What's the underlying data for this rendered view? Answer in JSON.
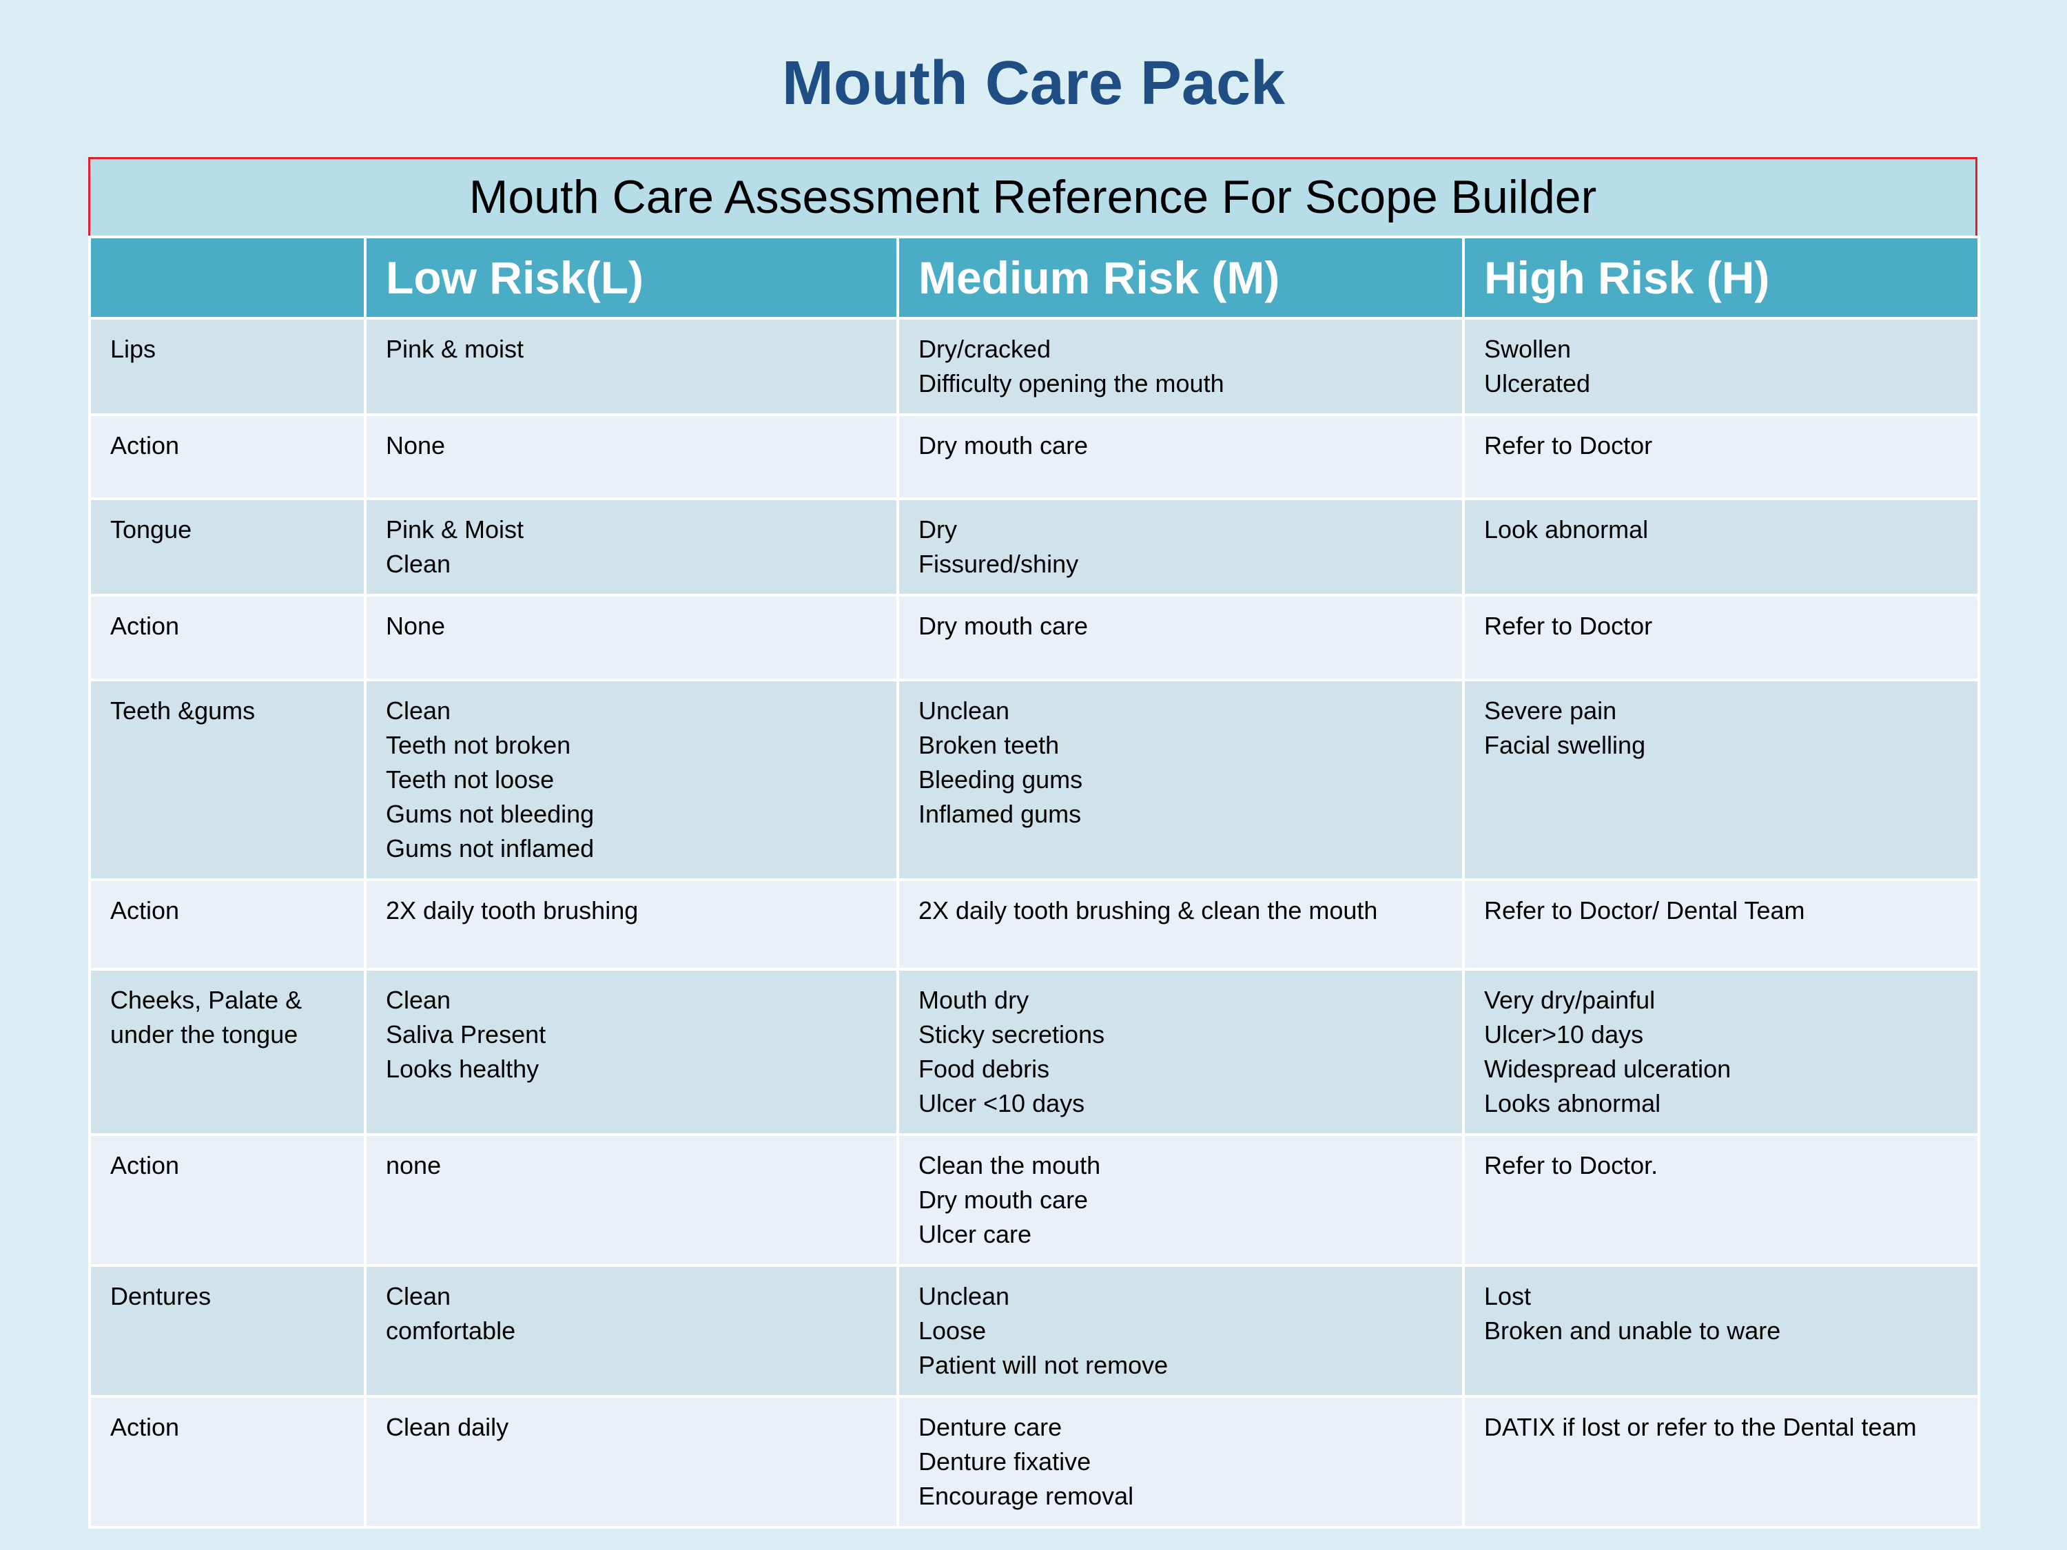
{
  "title": "Mouth Care Pack",
  "table": {
    "caption": "Mouth Care Assessment Reference For Scope Builder",
    "header": [
      "Low Risk(L)",
      "Medium Risk (M)",
      "High Risk (H)"
    ],
    "rows": [
      {
        "label": "Lips",
        "cells": [
          [
            "Pink & moist"
          ],
          [
            "Dry/cracked",
            "Difficulty opening the mouth"
          ],
          [
            "Swollen",
            "Ulcerated"
          ]
        ]
      },
      {
        "label": "Action",
        "cells": [
          [
            "None"
          ],
          [
            "Dry mouth care"
          ],
          [
            "Refer to Doctor"
          ]
        ]
      },
      {
        "label": "Tongue",
        "cells": [
          [
            "Pink & Moist",
            "Clean"
          ],
          [
            "Dry",
            "Fissured/shiny"
          ],
          [
            "Look abnormal"
          ]
        ]
      },
      {
        "label": "Action",
        "cells": [
          [
            "None"
          ],
          [
            "Dry mouth care"
          ],
          [
            "Refer to Doctor"
          ]
        ]
      },
      {
        "label": "Teeth &gums",
        "cells": [
          [
            "Clean",
            "Teeth not broken",
            "Teeth not loose",
            "Gums not bleeding",
            "Gums not inflamed"
          ],
          [
            "Unclean",
            "Broken teeth",
            "Bleeding gums",
            "Inflamed gums"
          ],
          [
            "Severe pain",
            "Facial swelling"
          ]
        ]
      },
      {
        "label": "Action",
        "cells": [
          [
            "2X daily tooth brushing"
          ],
          [
            "2X daily tooth brushing & clean the mouth"
          ],
          [
            "Refer to Doctor/ Dental Team"
          ]
        ]
      },
      {
        "label": "Cheeks, Palate & under the tongue",
        "cells": [
          [
            "Clean",
            "Saliva Present",
            "Looks healthy"
          ],
          [
            "Mouth dry",
            "Sticky secretions",
            "Food debris",
            "Ulcer <10 days"
          ],
          [
            "Very dry/painful",
            "Ulcer>10 days",
            "Widespread ulceration",
            "Looks abnormal"
          ]
        ]
      },
      {
        "label": "Action",
        "cells": [
          [
            "none"
          ],
          [
            "Clean the mouth",
            "Dry mouth care",
            "Ulcer care"
          ],
          [
            "Refer to Doctor."
          ]
        ]
      },
      {
        "label": "Dentures",
        "cells": [
          [
            "Clean",
            "comfortable"
          ],
          [
            "Unclean",
            "Loose",
            "Patient will not remove"
          ],
          [
            "Lost",
            "Broken and unable to ware"
          ]
        ]
      },
      {
        "label": "Action",
        "cells": [
          [
            "Clean daily"
          ],
          [
            "Denture care",
            "Denture fixative",
            "Encourage removal"
          ],
          [
            "DATIX if lost or refer to the Dental team"
          ]
        ]
      }
    ]
  }
}
